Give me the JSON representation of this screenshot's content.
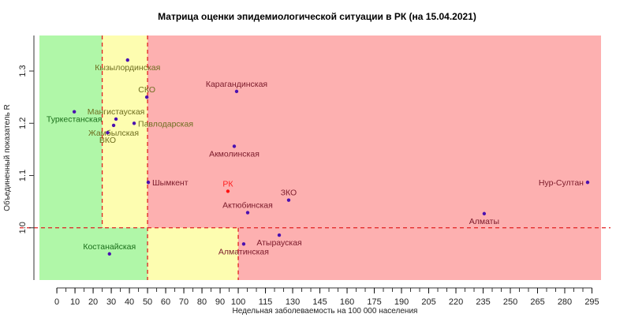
{
  "chart_data": {
    "type": "scatter",
    "title": "Матрица оценки эпидемиологической ситуации в РК (на 15.04.2021)",
    "xlabel": "Недельная заболеваемость на 100 000 населения",
    "ylabel": "Объединенный показатель R",
    "xlim": [
      -9.6,
      300
    ],
    "ylim": [
      0.9,
      1.368
    ],
    "x_ticks": [
      0,
      10,
      20,
      30,
      40,
      50,
      60,
      70,
      80,
      90,
      100,
      115,
      130,
      145,
      160,
      175,
      190,
      205,
      220,
      235,
      250,
      265,
      280,
      295
    ],
    "y_ticks": [
      1.0,
      1.1,
      1.2,
      1.3
    ],
    "thresholds": {
      "x_low": 25,
      "x_mid": 50,
      "x_high": 100,
      "r": 1.0
    },
    "zones": {
      "green": "#b0f7a8",
      "yellow": "#fdfdb0",
      "red": "#fdb0b0"
    },
    "points": [
      {
        "name": "Туркестанская",
        "x": 9.6,
        "y": 1.222,
        "pos": "below"
      },
      {
        "name": "Кызылординская",
        "x": 39,
        "y": 1.321,
        "pos": "below"
      },
      {
        "name": "СКО",
        "x": 49.6,
        "y": 1.25,
        "pos": "above"
      },
      {
        "name": "Мангистауская",
        "x": 32.6,
        "y": 1.208,
        "pos": "above"
      },
      {
        "name": "Павлодарская",
        "x": 42.6,
        "y": 1.2,
        "pos": "right"
      },
      {
        "name": "Жамбылская",
        "x": 31.3,
        "y": 1.196,
        "pos": "below"
      },
      {
        "name": "ВКО",
        "x": 28,
        "y": 1.182,
        "pos": "below"
      },
      {
        "name": "Шымкент",
        "x": 50.4,
        "y": 1.087,
        "pos": "right"
      },
      {
        "name": "Карагандинская",
        "x": 99.1,
        "y": 1.261,
        "pos": "above"
      },
      {
        "name": "Акмолинская",
        "x": 97.8,
        "y": 1.156,
        "pos": "below"
      },
      {
        "name": "РК",
        "x": 94.3,
        "y": 1.07,
        "pos": "above",
        "highlight": true
      },
      {
        "name": "Актюбинская",
        "x": 105.2,
        "y": 1.029,
        "pos": "above"
      },
      {
        "name": "ЗКО",
        "x": 127.8,
        "y": 1.053,
        "pos": "above"
      },
      {
        "name": "Алматы",
        "x": 235.6,
        "y": 1.027,
        "pos": "below"
      },
      {
        "name": "Нур-Султан",
        "x": 292.6,
        "y": 1.087,
        "pos": "left"
      },
      {
        "name": "Атырауская",
        "x": 122.6,
        "y": 0.986,
        "pos": "below"
      },
      {
        "name": "Алматинская",
        "x": 103,
        "y": 0.969,
        "pos": "below"
      },
      {
        "name": "Костанайская",
        "x": 29,
        "y": 0.95,
        "pos": "above"
      }
    ]
  }
}
